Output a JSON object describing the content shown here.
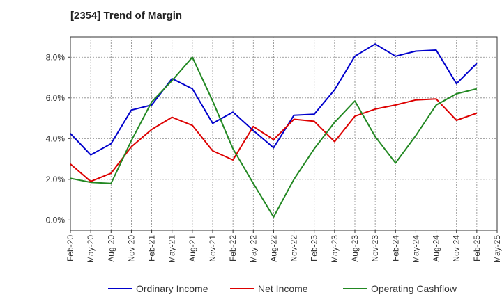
{
  "chart_data": {
    "type": "line",
    "title": "[2354]  Trend of Margin",
    "xlabel": "",
    "ylabel": "",
    "categories": [
      "Feb-20",
      "May-20",
      "Aug-20",
      "Nov-20",
      "Feb-21",
      "May-21",
      "Aug-21",
      "Nov-21",
      "Feb-22",
      "May-22",
      "Aug-22",
      "Nov-22",
      "Feb-23",
      "May-23",
      "Aug-23",
      "Nov-23",
      "Feb-24",
      "May-24",
      "Aug-24",
      "Nov-24",
      "Feb-25",
      "May-25"
    ],
    "ylim": [
      -0.5,
      9.0
    ],
    "yticks": [
      0.0,
      2.0,
      4.0,
      6.0,
      8.0
    ],
    "ytick_labels": [
      "0.0%",
      "2.0%",
      "4.0%",
      "6.0%",
      "8.0%"
    ],
    "grid": true,
    "legend_position": "bottom",
    "series": [
      {
        "name": "Ordinary Income",
        "color": "#0000cc",
        "values": [
          4.25,
          3.2,
          3.75,
          5.4,
          5.65,
          6.95,
          6.45,
          4.75,
          5.3,
          4.4,
          3.55,
          5.15,
          5.2,
          6.4,
          8.05,
          8.65,
          8.05,
          8.3,
          8.35,
          6.7,
          7.7,
          null
        ]
      },
      {
        "name": "Net Income",
        "color": "#dd0000",
        "values": [
          2.75,
          1.9,
          2.3,
          3.6,
          4.45,
          5.05,
          4.65,
          3.4,
          2.95,
          4.6,
          3.95,
          4.95,
          4.85,
          3.85,
          5.1,
          5.45,
          5.65,
          5.9,
          5.95,
          4.9,
          5.25,
          null
        ]
      },
      {
        "name": "Operating Cashflow",
        "color": "#228822",
        "values": [
          2.05,
          1.85,
          1.8,
          3.9,
          5.8,
          6.85,
          8.0,
          5.85,
          3.5,
          1.8,
          0.15,
          2.0,
          3.5,
          4.8,
          5.85,
          4.1,
          2.8,
          4.15,
          5.65,
          6.2,
          6.45,
          null
        ]
      }
    ]
  }
}
